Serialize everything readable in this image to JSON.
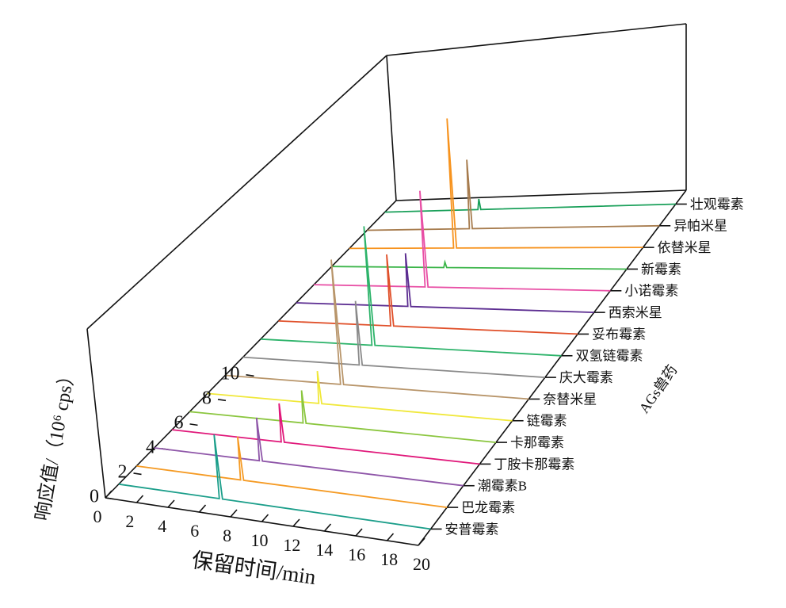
{
  "chart_data": {
    "type": "line3d",
    "xlabel": "保留时间/min",
    "ylabel": "响应值/（10⁶ cps）",
    "zlabel": "AGs兽药",
    "xlim": [
      0,
      20
    ],
    "xticks": [
      0,
      2,
      4,
      6,
      8,
      10,
      12,
      14,
      16,
      18,
      20
    ],
    "ylim": [
      0,
      11.5
    ],
    "yticks": [
      0,
      2,
      4,
      6,
      8,
      10
    ],
    "series": [
      {
        "name": "安普霉素",
        "color": "#1b9e8a",
        "x": [
          0,
          6.45,
          6.55,
          6.65,
          20
        ],
        "values": [
          0,
          0,
          4.4,
          0,
          0
        ]
      },
      {
        "name": "巴龙霉素",
        "color": "#f59a23",
        "x": [
          0,
          6.7,
          6.8,
          6.9,
          20
        ],
        "values": [
          0,
          0,
          3.0,
          0,
          0
        ]
      },
      {
        "name": "潮霉素B",
        "color": "#8e55a8",
        "x": [
          0,
          6.8,
          6.9,
          7.0,
          20
        ],
        "values": [
          0,
          0,
          3.0,
          0,
          0
        ]
      },
      {
        "name": "丁胺卡那霉素",
        "color": "#e0187a",
        "x": [
          0,
          7.1,
          7.2,
          7.3,
          20
        ],
        "values": [
          0,
          0,
          2.7,
          0,
          0
        ]
      },
      {
        "name": "卡那霉素",
        "color": "#8bc63f",
        "x": [
          0,
          7.4,
          7.5,
          7.6,
          20
        ],
        "values": [
          0,
          0,
          2.3,
          0,
          0
        ]
      },
      {
        "name": "链霉素",
        "color": "#f0e83a",
        "x": [
          0,
          7.3,
          7.4,
          7.5,
          20
        ],
        "values": [
          0,
          0,
          2.3,
          0,
          0
        ]
      },
      {
        "name": "奈替米星",
        "color": "#b8956a",
        "x": [
          0,
          7.6,
          7.7,
          7.8,
          20
        ],
        "values": [
          0,
          0,
          8.9,
          0,
          0
        ]
      },
      {
        "name": "庆大霉素",
        "color": "#8a8a8a",
        "x": [
          0,
          7.7,
          7.8,
          7.9,
          20
        ],
        "values": [
          0,
          0,
          4.6,
          0,
          0
        ]
      },
      {
        "name": "双氢链霉素",
        "color": "#2db36a",
        "x": [
          0,
          7.4,
          7.5,
          7.6,
          20
        ],
        "values": [
          0,
          0,
          8.6,
          0,
          0
        ]
      },
      {
        "name": "妥布霉素",
        "color": "#e0502a",
        "x": [
          0,
          7.5,
          7.6,
          7.7,
          20
        ],
        "values": [
          0,
          0,
          5.2,
          0,
          0
        ]
      },
      {
        "name": "西索米星",
        "color": "#5c2d91",
        "x": [
          0,
          7.5,
          7.6,
          7.7,
          20
        ],
        "values": [
          0,
          0,
          3.9,
          0,
          0
        ]
      },
      {
        "name": "小诺霉素",
        "color": "#e84fa5",
        "x": [
          0,
          7.5,
          7.6,
          7.7,
          20
        ],
        "values": [
          0,
          0,
          7.1,
          0,
          0
        ]
      },
      {
        "name": "新霉素",
        "color": "#3cb54a",
        "x": [
          0,
          7.6,
          7.7,
          7.8,
          20
        ],
        "values": [
          0,
          0,
          0.4,
          0,
          0
        ]
      },
      {
        "name": "依替米星",
        "color": "#f7931e",
        "x": [
          0,
          7.1,
          7.2,
          7.3,
          20
        ],
        "values": [
          0,
          0,
          9.7,
          0,
          0
        ]
      },
      {
        "name": "异帕米星",
        "color": "#a77c4e",
        "x": [
          0,
          7.0,
          7.1,
          7.2,
          20
        ],
        "values": [
          0,
          0,
          5.2,
          0,
          0
        ]
      },
      {
        "name": "壮观霉素",
        "color": "#1aa05a",
        "x": [
          0,
          6.4,
          6.5,
          6.6,
          20
        ],
        "values": [
          0,
          0,
          0.8,
          0,
          0
        ]
      }
    ]
  }
}
